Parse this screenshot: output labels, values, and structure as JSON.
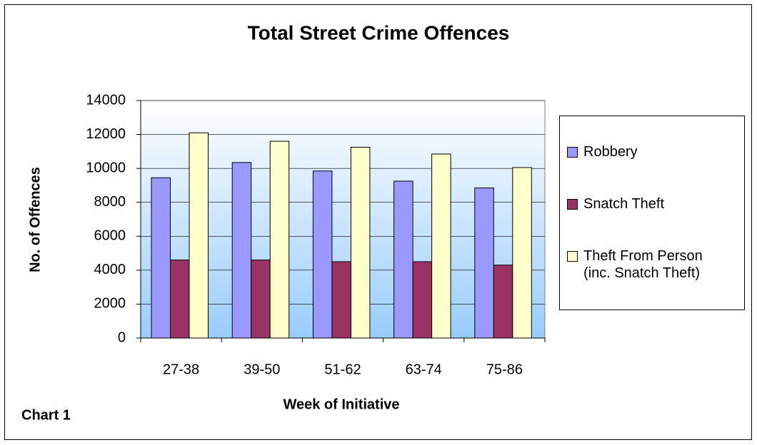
{
  "chart_data": {
    "type": "bar",
    "title": "Total Street Crime Offences",
    "x_label": "Week of Initiative",
    "y_label": "No. of Offences",
    "annotation": "Chart 1",
    "categories": [
      "27-38",
      "39-50",
      "51-62",
      "63-74",
      "75-86"
    ],
    "series": [
      {
        "name": "Robbery",
        "color": "#9999ff",
        "values": [
          9450,
          10350,
          9850,
          9250,
          8850
        ]
      },
      {
        "name": "Snatch Theft",
        "color": "#993366",
        "values": [
          4600,
          4600,
          4500,
          4500,
          4300
        ]
      },
      {
        "name": "Theft From Person\n(inc. Snatch Theft)",
        "color": "#ffffcc",
        "values": [
          12100,
          11600,
          11250,
          10850,
          10050
        ]
      }
    ],
    "ylim": [
      0,
      14000
    ],
    "yticks": [
      0,
      2000,
      4000,
      6000,
      8000,
      10000,
      12000,
      14000
    ],
    "grid": true,
    "legend": "right"
  }
}
